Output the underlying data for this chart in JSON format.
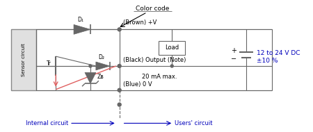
{
  "line_color": "#666666",
  "red_color": "#e06060",
  "blue_text_color": "#0000bb",
  "black_text_color": "#000000",
  "label_brown": "(Brown) +V",
  "label_black": "(Black) Output (Note)",
  "label_blue": "(Blue) 0 V",
  "label_20ma": "20 mA max.",
  "label_vdc": "12 to 24 V DC",
  "label_10pct": "±10 %",
  "label_internal": "Internal circuit",
  "label_users": "Users' circuit",
  "label_D1": "D₁",
  "label_D2": "D₂",
  "label_Tr": "Tr",
  "label_ZD": "Zʙ",
  "label_load": "Load",
  "label_colorcode": "Color code"
}
